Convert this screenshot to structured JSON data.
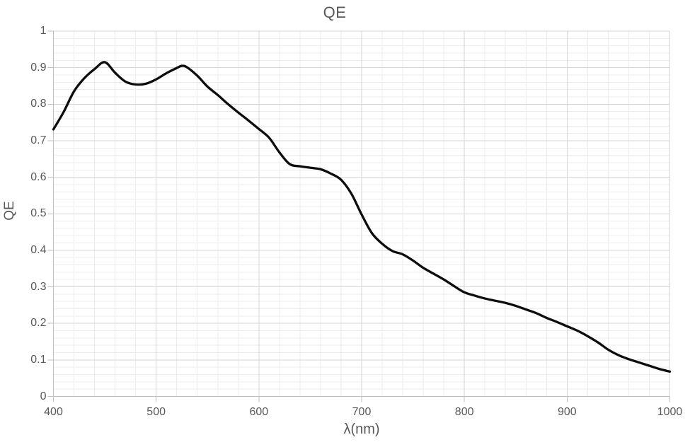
{
  "title": "QE",
  "axes": {
    "x_label": "λ(nm)",
    "y_label": "QE",
    "x_tick_labels": [
      "400",
      "500",
      "600",
      "700",
      "800",
      "900",
      "1000"
    ],
    "y_tick_labels": [
      "0",
      "0.1",
      "0.2",
      "0.3",
      "0.4",
      "0.5",
      "0.6",
      "0.7",
      "0.8",
      "0.9",
      "1"
    ]
  },
  "colors": {
    "background": "#ffffff",
    "curve": "#0d0d0d",
    "major_grid": "#d6d6d6",
    "minor_grid": "#ededed",
    "axis_line": "#bfbfbf",
    "text": "#595959"
  },
  "chart_data": {
    "type": "line",
    "title": "QE",
    "xlabel": "λ(nm)",
    "ylabel": "QE",
    "xlim": [
      400,
      1000
    ],
    "ylim": [
      0,
      1
    ],
    "x_major_step": 100,
    "x_minor_step": 20,
    "y_major_step": 0.1,
    "y_minor_step": 0.02,
    "grid": "major+minor",
    "legend": "none",
    "smoothed": true,
    "line_width": 3.3,
    "series": [
      {
        "name": "QE",
        "x": [
          400,
          410,
          420,
          430,
          440,
          450,
          460,
          470,
          480,
          490,
          500,
          510,
          520,
          525,
          530,
          540,
          550,
          560,
          570,
          580,
          590,
          600,
          610,
          620,
          630,
          640,
          650,
          660,
          670,
          680,
          690,
          700,
          710,
          720,
          730,
          740,
          750,
          760,
          770,
          780,
          790,
          800,
          810,
          820,
          830,
          840,
          850,
          860,
          870,
          880,
          890,
          900,
          910,
          920,
          930,
          940,
          950,
          960,
          970,
          980,
          990,
          1000
        ],
        "y": [
          0.731,
          0.779,
          0.835,
          0.871,
          0.896,
          0.915,
          0.886,
          0.862,
          0.854,
          0.856,
          0.868,
          0.885,
          0.899,
          0.905,
          0.901,
          0.878,
          0.848,
          0.825,
          0.8,
          0.777,
          0.755,
          0.732,
          0.708,
          0.668,
          0.636,
          0.63,
          0.626,
          0.622,
          0.61,
          0.593,
          0.555,
          0.498,
          0.447,
          0.418,
          0.398,
          0.389,
          0.372,
          0.352,
          0.336,
          0.32,
          0.302,
          0.285,
          0.276,
          0.268,
          0.262,
          0.256,
          0.248,
          0.238,
          0.228,
          0.215,
          0.204,
          0.192,
          0.18,
          0.165,
          0.148,
          0.128,
          0.113,
          0.102,
          0.093,
          0.084,
          0.075,
          0.068
        ]
      }
    ]
  }
}
